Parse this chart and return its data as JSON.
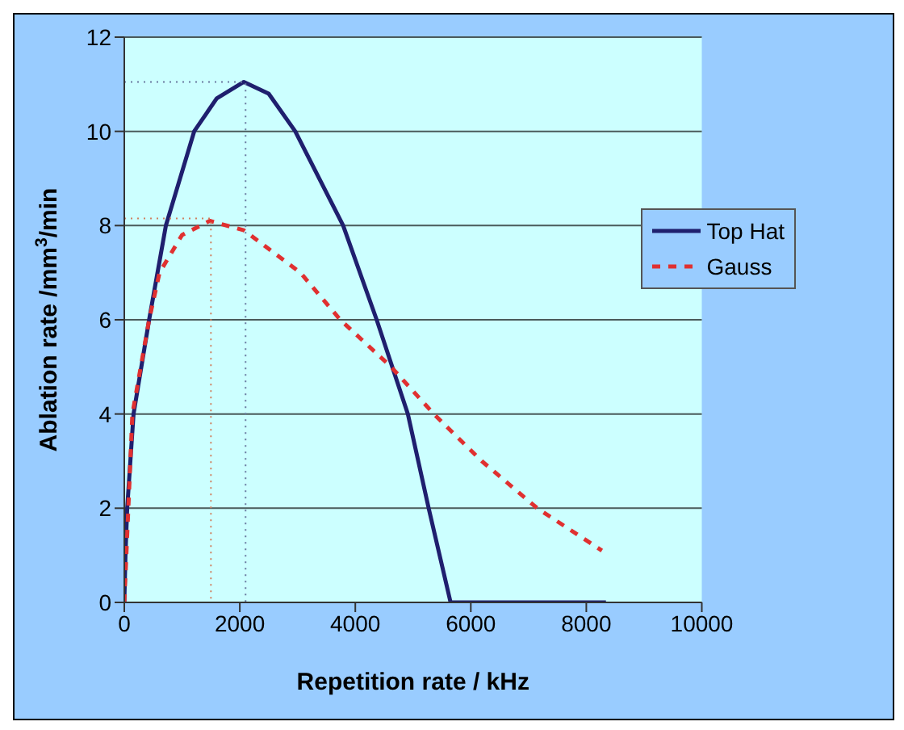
{
  "chart_data": {
    "type": "line",
    "xlabel": "Repetition rate / kHz",
    "ylabel": "Ablation rate /mm$^{3}$/min",
    "xlim": [
      0,
      10000
    ],
    "xticks": [
      0,
      2000,
      4000,
      6000,
      8000,
      10000
    ],
    "ylim": [
      0,
      12
    ],
    "yticks": [
      0,
      2,
      4,
      6,
      8,
      10,
      12
    ],
    "grid": "y",
    "legend": "right",
    "marker": "none",
    "series": [
      {
        "name": "Top Hat",
        "color": "#1f1f6e",
        "line_style": "solid",
        "x": [
          0,
          20,
          50,
          160,
          430,
          720,
          1210,
          1600,
          2070,
          2500,
          2960,
          3790,
          4370,
          4910,
          5270,
          5650,
          8340
        ],
        "values": [
          0,
          1,
          2,
          4,
          6,
          8,
          10,
          10.7,
          11.05,
          10.8,
          10,
          8,
          6,
          4,
          2,
          0,
          0
        ]
      },
      {
        "name": "Gauss",
        "color": "#e03030",
        "line_style": "dashed",
        "x": [
          0,
          70,
          140,
          430,
          610,
          1000,
          1480,
          2070,
          3050,
          3740,
          4620,
          5360,
          6190,
          7150,
          8270
        ],
        "values": [
          0,
          2,
          4,
          6,
          7,
          7.8,
          8.1,
          7.9,
          7,
          6,
          5,
          4,
          3,
          2,
          1.1
        ]
      },
      {
        "color": "#6a7aa0",
        "line_style": "dotted",
        "x": [
          0,
          2100,
          2100
        ],
        "values": [
          11.05,
          11.05,
          0
        ]
      },
      {
        "color": "#d08060",
        "line_style": "dotted",
        "x": [
          0,
          1500,
          1500
        ],
        "values": [
          8.15,
          8.15,
          0
        ]
      }
    ]
  }
}
